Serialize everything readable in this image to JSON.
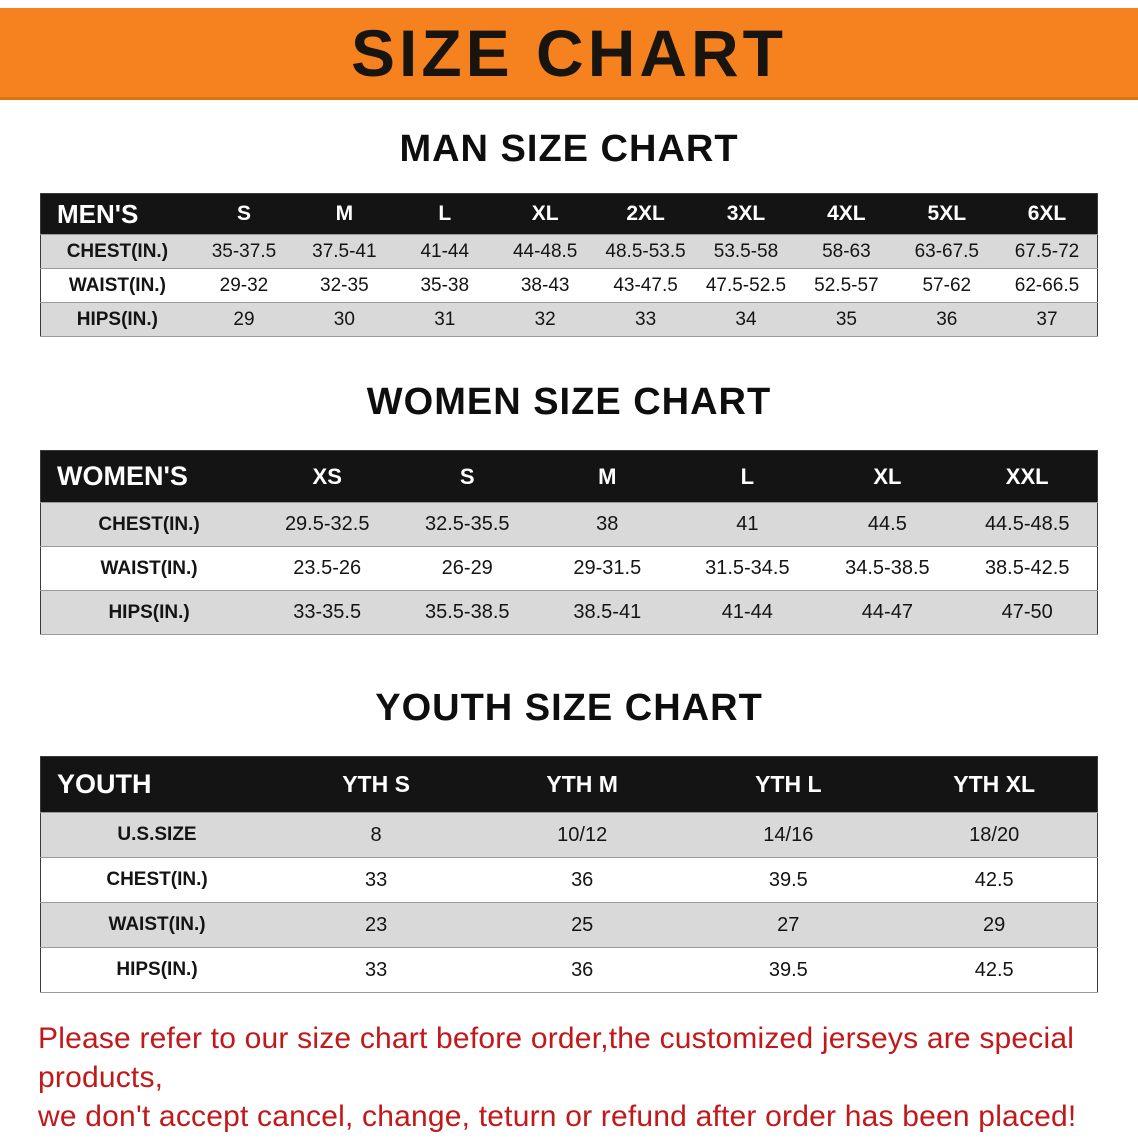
{
  "banner": {
    "title": "SIZE CHART",
    "bg_color": "#f5821f",
    "text_color": "#18140f"
  },
  "colors": {
    "table_header_bg": "#141414",
    "table_header_text": "#ffffff",
    "row_stripe": "#d9d9d9",
    "disclaimer_red": "#c2181a"
  },
  "sections": [
    {
      "id": "men",
      "heading": "MAN SIZE CHART",
      "table": {
        "header": [
          "MEN'S",
          "S",
          "M",
          "L",
          "XL",
          "2XL",
          "3XL",
          "4XL",
          "5XL",
          "6XL"
        ],
        "rows": [
          [
            "CHEST(IN.)",
            "35-37.5",
            "37.5-41",
            "41-44",
            "44-48.5",
            "48.5-53.5",
            "53.5-58",
            "58-63",
            "63-67.5",
            "67.5-72"
          ],
          [
            "WAIST(IN.)",
            "29-32",
            "32-35",
            "35-38",
            "38-43",
            "43-47.5",
            "47.5-52.5",
            "52.5-57",
            "57-62",
            "62-66.5"
          ],
          [
            "HIPS(IN.)",
            "29",
            "30",
            "31",
            "32",
            "33",
            "34",
            "35",
            "36",
            "37"
          ]
        ]
      }
    },
    {
      "id": "women",
      "heading": "WOMEN SIZE CHART",
      "table": {
        "header": [
          "WOMEN'S",
          "XS",
          "S",
          "M",
          "L",
          "XL",
          "XXL"
        ],
        "rows": [
          [
            "CHEST(IN.)",
            "29.5-32.5",
            "32.5-35.5",
            "38",
            "41",
            "44.5",
            "44.5-48.5"
          ],
          [
            "WAIST(IN.)",
            "23.5-26",
            "26-29",
            "29-31.5",
            "31.5-34.5",
            "34.5-38.5",
            "38.5-42.5"
          ],
          [
            "HIPS(IN.)",
            "33-35.5",
            "35.5-38.5",
            "38.5-41",
            "41-44",
            "44-47",
            "47-50"
          ]
        ]
      }
    },
    {
      "id": "youth",
      "heading": "YOUTH SIZE CHART",
      "table": {
        "header": [
          "YOUTH",
          "YTH S",
          "YTH M",
          "YTH L",
          "YTH XL"
        ],
        "rows": [
          [
            "U.S.SIZE",
            "8",
            "10/12",
            "14/16",
            "18/20"
          ],
          [
            "CHEST(IN.)",
            "33",
            "36",
            "39.5",
            "42.5"
          ],
          [
            "WAIST(IN.)",
            "23",
            "25",
            "27",
            "29"
          ],
          [
            "HIPS(IN.)",
            "33",
            "36",
            "39.5",
            "42.5"
          ]
        ]
      }
    }
  ],
  "disclaimer": {
    "line1": "Please refer to our size chart before order,the customized jerseys are special products,",
    "line2": "we don't accept cancel, change, teturn or refund after order has been placed!"
  }
}
